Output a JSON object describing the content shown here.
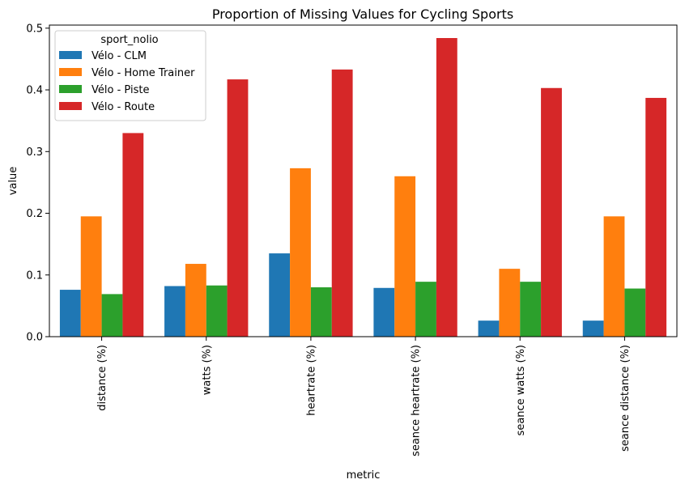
{
  "chart_data": {
    "type": "bar",
    "title": "Proportion of Missing Values for Cycling Sports",
    "xlabel": "metric",
    "ylabel": "value",
    "ylim": [
      0,
      0.505
    ],
    "yticks": [
      0.0,
      0.1,
      0.2,
      0.3,
      0.4,
      0.5
    ],
    "ytick_labels": [
      "0.0",
      "0.1",
      "0.2",
      "0.3",
      "0.4",
      "0.5"
    ],
    "categories": [
      "distance (%)",
      "watts (%)",
      "heartrate (%)",
      "seance heartrate (%)",
      "seance watts (%)",
      "seance distance (%)"
    ],
    "legend": {
      "title": "sport_nolio",
      "position": "top-left"
    },
    "grid": false,
    "series": [
      {
        "name": "Vélo - CLM",
        "color": "#1f77b4",
        "values": [
          0.076,
          0.082,
          0.135,
          0.079,
          0.026,
          0.026
        ]
      },
      {
        "name": "Vélo - Home Trainer",
        "color": "#ff7f0e",
        "values": [
          0.195,
          0.118,
          0.273,
          0.26,
          0.11,
          0.195
        ]
      },
      {
        "name": "Vélo - Piste",
        "color": "#2ca02c",
        "values": [
          0.069,
          0.083,
          0.08,
          0.089,
          0.089,
          0.078
        ]
      },
      {
        "name": "Vélo - Route",
        "color": "#d62728",
        "values": [
          0.33,
          0.417,
          0.433,
          0.484,
          0.403,
          0.387
        ]
      }
    ]
  }
}
